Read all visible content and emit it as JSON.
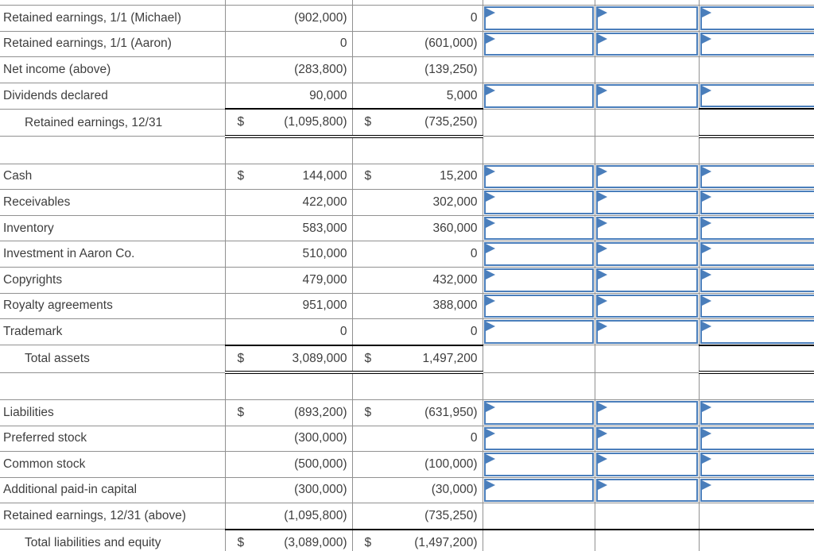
{
  "app": {
    "description_label": "Consolidation worksheet with parent and subsidiary columns and blank entry cells"
  },
  "colors": {
    "grid_line": "#919191",
    "total_line": "#000000",
    "entry_box_border": "#4a7ebb",
    "entry_flag": "#4a7ebb",
    "text": "#3e3e3e",
    "background": "#ffffff"
  },
  "icons": {
    "entry_flag_icon": "right-pointing blue flag marker in top-left corner of fillable cell"
  },
  "worksheet": {
    "currency_symbol": "$",
    "rows": [
      {
        "kind": "spacer"
      },
      {
        "kind": "data",
        "label": "Retained earnings, 1/1 (Michael)",
        "michael": "(902,000)",
        "aaron": "0",
        "dollar": false,
        "inputs": true
      },
      {
        "kind": "data",
        "label": "Retained earnings, 1/1 (Aaron)",
        "michael": "0",
        "aaron": "(601,000)",
        "dollar": false,
        "inputs": true
      },
      {
        "kind": "data",
        "label": "Net income (above)",
        "michael": "(283,800)",
        "aaron": "(139,250)",
        "dollar": false,
        "inputs": false
      },
      {
        "kind": "data",
        "label": "Dividends declared",
        "michael": "90,000",
        "aaron": "5,000",
        "dollar": false,
        "inputs": true
      },
      {
        "kind": "data",
        "label": "Retained earnings, 12/31",
        "indent": true,
        "michael": "(1,095,800)",
        "aaron": "(735,250)",
        "dollar": true,
        "inputs": false,
        "num_style": "double",
        "entry3_style": "double"
      },
      {
        "kind": "empty"
      },
      {
        "kind": "data",
        "label": "Cash",
        "michael": "144,000",
        "aaron": "15,200",
        "dollar": true,
        "inputs": true
      },
      {
        "kind": "data",
        "label": "Receivables",
        "michael": "422,000",
        "aaron": "302,000",
        "dollar": false,
        "inputs": true
      },
      {
        "kind": "data",
        "label": "Inventory",
        "michael": "583,000",
        "aaron": "360,000",
        "dollar": false,
        "inputs": true
      },
      {
        "kind": "data",
        "label": "Investment in Aaron Co.",
        "michael": "510,000",
        "aaron": "0",
        "dollar": false,
        "inputs": true
      },
      {
        "kind": "data",
        "label": "Copyrights",
        "michael": "479,000",
        "aaron": "432,000",
        "dollar": false,
        "inputs": true
      },
      {
        "kind": "data",
        "label": "Royalty agreements",
        "michael": "951,000",
        "aaron": "388,000",
        "dollar": false,
        "inputs": true
      },
      {
        "kind": "data",
        "label": "Trademark",
        "michael": "0",
        "aaron": "0",
        "dollar": false,
        "inputs": true
      },
      {
        "kind": "data",
        "label": "Total assets",
        "indent": true,
        "michael": "3,089,000",
        "aaron": "1,497,200",
        "dollar": true,
        "inputs": false,
        "num_style": "double",
        "entry3_style": "double"
      },
      {
        "kind": "empty"
      },
      {
        "kind": "data",
        "label": "Liabilities",
        "michael": "(893,200)",
        "aaron": "(631,950)",
        "dollar": true,
        "inputs": true
      },
      {
        "kind": "data",
        "label": "Preferred stock",
        "michael": "(300,000)",
        "aaron": "0",
        "dollar": false,
        "inputs": true
      },
      {
        "kind": "data",
        "label": "Common stock",
        "michael": "(500,000)",
        "aaron": "(100,000)",
        "dollar": false,
        "inputs": true
      },
      {
        "kind": "data",
        "label": "Additional paid-in capital",
        "michael": "(300,000)",
        "aaron": "(30,000)",
        "dollar": false,
        "inputs": true
      },
      {
        "kind": "data",
        "label": "Retained earnings, 12/31 (above)",
        "michael": "(1,095,800)",
        "aaron": "(735,250)",
        "dollar": false,
        "inputs": false
      },
      {
        "kind": "data",
        "label": "Total liabilities and equity",
        "indent": true,
        "michael": "(3,089,000)",
        "aaron": "(1,497,200)",
        "dollar": true,
        "inputs": false,
        "num_style": "topline",
        "entry_top_black": true,
        "bottom_black": true
      }
    ]
  }
}
